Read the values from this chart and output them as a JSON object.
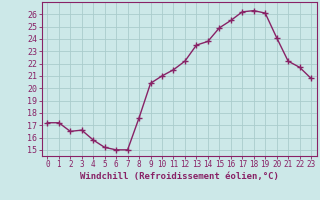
{
  "x": [
    0,
    1,
    2,
    3,
    4,
    5,
    6,
    7,
    8,
    9,
    10,
    11,
    12,
    13,
    14,
    15,
    16,
    17,
    18,
    19,
    20,
    21,
    22,
    23
  ],
  "y": [
    17.2,
    17.2,
    16.5,
    16.6,
    15.8,
    15.2,
    15.0,
    15.0,
    17.6,
    20.4,
    21.0,
    21.5,
    22.2,
    23.5,
    23.8,
    24.9,
    25.5,
    26.2,
    26.3,
    26.1,
    24.1,
    22.2,
    21.7,
    20.8
  ],
  "line_color": "#882266",
  "marker": "+",
  "marker_size": 4,
  "linewidth": 1.0,
  "xlabel": "Windchill (Refroidissement éolien,°C)",
  "xlabel_color": "#882266",
  "bg_color": "#cce8e8",
  "grid_color": "#aacccc",
  "tick_color": "#882266",
  "ylim_min": 14.5,
  "ylim_max": 27.0,
  "yticks": [
    15,
    16,
    17,
    18,
    19,
    20,
    21,
    22,
    23,
    24,
    25,
    26
  ],
  "xticks": [
    0,
    1,
    2,
    3,
    4,
    5,
    6,
    7,
    8,
    9,
    10,
    11,
    12,
    13,
    14,
    15,
    16,
    17,
    18,
    19,
    20,
    21,
    22,
    23
  ],
  "xtick_labels": [
    "0",
    "1",
    "2",
    "3",
    "4",
    "5",
    "6",
    "7",
    "8",
    "9",
    "10",
    "11",
    "12",
    "13",
    "14",
    "15",
    "16",
    "17",
    "18",
    "19",
    "20",
    "21",
    "22",
    "23"
  ]
}
